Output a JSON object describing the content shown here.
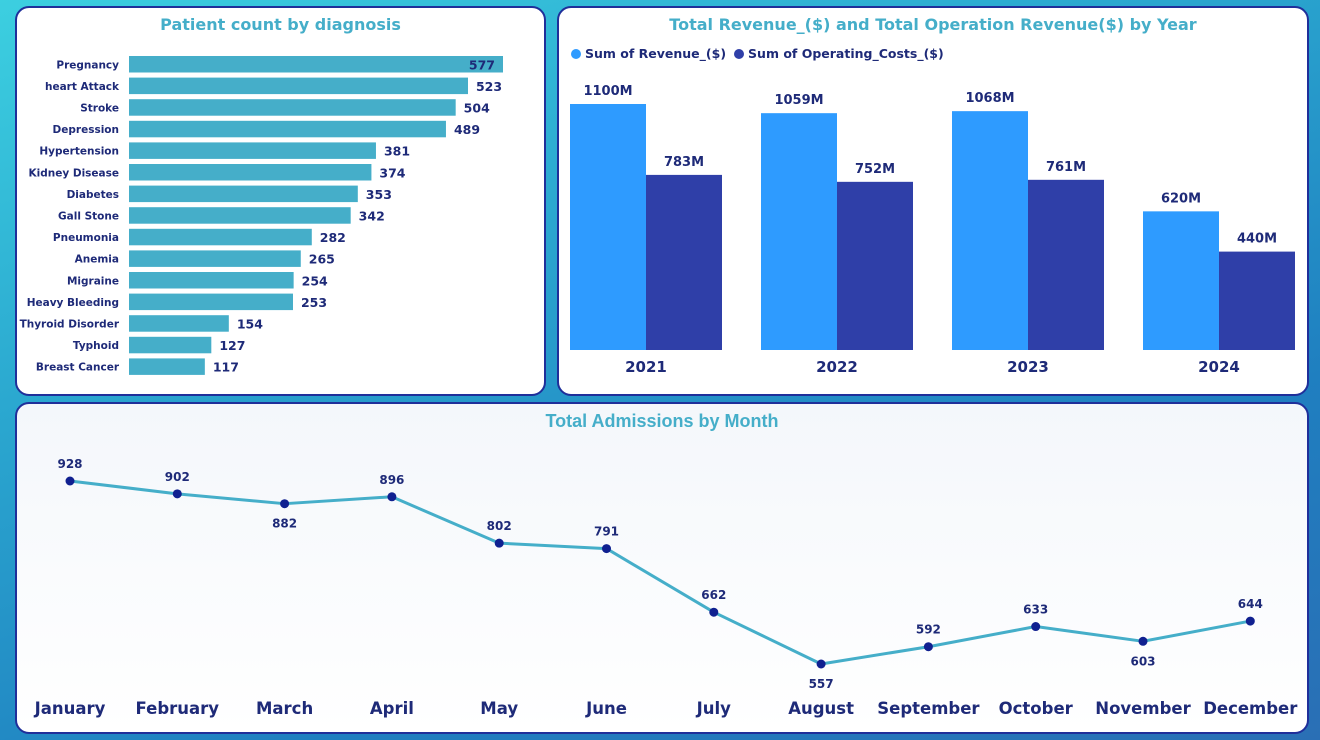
{
  "chart_data": [
    {
      "type": "bar",
      "orientation": "horizontal",
      "title": "Patient count by diagnosis",
      "categories": [
        "Pregnancy",
        "heart Attack",
        "Stroke",
        "Depression",
        "Hypertension",
        "Kidney Disease",
        "Diabetes",
        "Gall Stone",
        "Pneumonia",
        "Anemia",
        "Migraine",
        "Heavy Bleeding",
        "Thyroid Disorder",
        "Typhoid",
        "Breast Cancer"
      ],
      "values": [
        577,
        523,
        504,
        489,
        381,
        374,
        353,
        342,
        282,
        265,
        254,
        253,
        154,
        127,
        117
      ],
      "xlim": [
        0,
        577
      ],
      "color": "#45aec9",
      "label_color": "#1e2a78"
    },
    {
      "type": "bar",
      "title": "Total Revenue_($) and Total Operation Revenue($) by Year",
      "categories": [
        "2021",
        "2022",
        "2023",
        "2024"
      ],
      "series": [
        {
          "name": "Sum of Revenue_($)",
          "values": [
            1100,
            1059,
            1068,
            620
          ],
          "labels": [
            "1100M",
            "1059M",
            "1068M",
            "620M"
          ],
          "color": "#2e9bff"
        },
        {
          "name": "Sum of Operating_Costs_($)",
          "values": [
            783,
            752,
            761,
            440
          ],
          "labels": [
            "783M",
            "752M",
            "761M",
            "440M"
          ],
          "color": "#2f3fa8"
        }
      ],
      "unit": "M",
      "ylim": [
        0,
        1100
      ],
      "legend": "top-left"
    },
    {
      "type": "line",
      "title": "Total Admissions by Month",
      "categories": [
        "January",
        "February",
        "March",
        "April",
        "May",
        "June",
        "July",
        "August",
        "September",
        "October",
        "November",
        "December"
      ],
      "values": [
        928,
        902,
        882,
        896,
        802,
        791,
        662,
        557,
        592,
        633,
        603,
        644
      ],
      "ylim": [
        557,
        928
      ],
      "line_color": "#45aec9",
      "marker_color": "#102090"
    }
  ]
}
